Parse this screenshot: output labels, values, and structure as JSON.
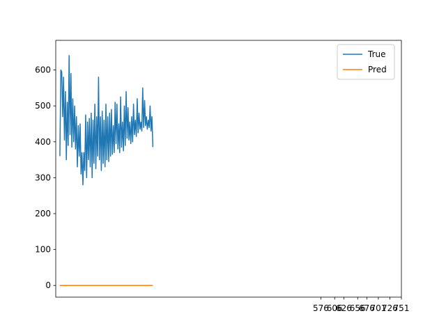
{
  "chart_data": {
    "type": "line",
    "title": "",
    "xlabel": "",
    "ylabel": "",
    "ylim": [
      -32.5,
      682.5
    ],
    "xlim": [
      0,
      751
    ],
    "yticks": [
      0,
      100,
      200,
      300,
      400,
      500,
      600
    ],
    "xticks": [
      576,
      606,
      626,
      656,
      676,
      701,
      726,
      751
    ],
    "xtick_labels": [
      "576",
      "606",
      "626",
      "656",
      "676",
      "701",
      "726",
      "751"
    ],
    "grid": false,
    "legend": {
      "placement": "top-right"
    },
    "series": [
      {
        "name": "True",
        "color": "#1f77b4",
        "x": [
          9,
          11,
          13,
          15,
          17,
          19,
          21,
          23,
          25,
          27,
          29,
          31,
          33,
          35,
          37,
          39,
          41,
          43,
          45,
          47,
          49,
          51,
          53,
          55,
          57,
          59,
          61,
          63,
          65,
          67,
          69,
          71,
          73,
          75,
          77,
          79,
          81,
          83,
          85,
          87,
          89,
          91,
          93,
          95,
          97,
          99,
          101,
          103,
          105,
          107,
          109,
          111,
          113,
          115,
          117,
          119,
          121,
          123,
          125,
          127,
          129,
          131,
          133,
          135,
          137,
          139,
          141,
          143,
          145,
          147,
          149,
          151,
          153,
          155,
          157,
          159,
          161,
          163,
          165,
          167,
          169,
          171,
          173,
          175,
          177,
          179,
          181,
          183,
          185,
          187,
          189,
          191,
          193,
          195,
          197,
          199,
          201,
          203,
          205,
          207,
          209,
          211
        ],
        "values": [
          360,
          600,
          595,
          470,
          580,
          405,
          540,
          350,
          510,
          390,
          640,
          420,
          590,
          385,
          520,
          400,
          500,
          380,
          470,
          330,
          445,
          360,
          450,
          310,
          370,
          280,
          370,
          320,
          475,
          300,
          455,
          350,
          465,
          330,
          480,
          300,
          460,
          340,
          505,
          325,
          470,
          360,
          580,
          350,
          470,
          320,
          485,
          340,
          460,
          330,
          505,
          350,
          470,
          345,
          480,
          360,
          490,
          365,
          445,
          370,
          510,
          395,
          505,
          380,
          450,
          370,
          525,
          385,
          455,
          375,
          500,
          390,
          540,
          410,
          495,
          405,
          455,
          395,
          470,
          400,
          505,
          420,
          460,
          415,
          520,
          425,
          480,
          435,
          455,
          430,
          550,
          440,
          515,
          445,
          470,
          435,
          460,
          440,
          500,
          430,
          470,
          385
        ]
      },
      {
        "name": "Pred",
        "color": "#ff7f0e",
        "x": [
          9,
          211
        ],
        "values": [
          0,
          0
        ]
      }
    ]
  }
}
